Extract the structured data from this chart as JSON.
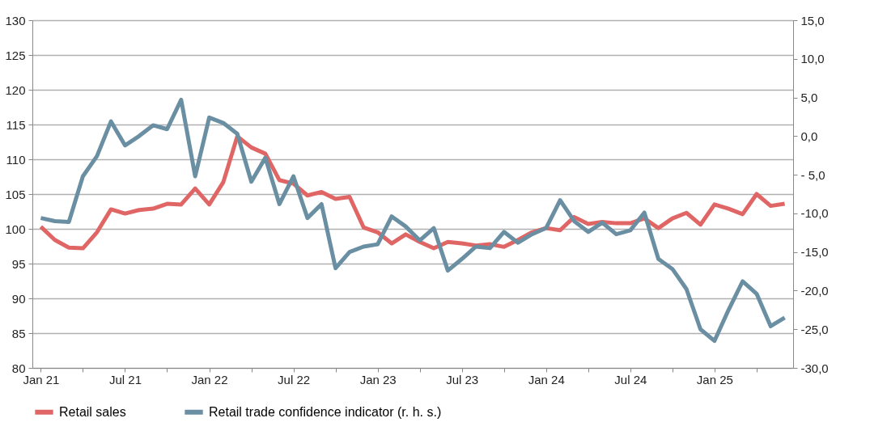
{
  "chart_data": {
    "type": "line",
    "categories": [
      "Jan 21",
      null,
      null,
      null,
      null,
      null,
      "Jul 21",
      null,
      null,
      null,
      null,
      null,
      "Jan 22",
      null,
      null,
      null,
      null,
      null,
      "Jul 22",
      null,
      null,
      null,
      null,
      null,
      "Jan 23",
      null,
      null,
      null,
      null,
      null,
      "Jul 23",
      null,
      null,
      null,
      null,
      null,
      "Jan 24",
      null,
      null,
      null,
      null,
      null,
      "Jul 24",
      null,
      null,
      null,
      null,
      null,
      "Jan 25",
      null,
      null,
      null,
      null,
      null
    ],
    "series": [
      {
        "name": "Retail sales",
        "color": "#e06666",
        "values": [
          100.3,
          98.4,
          97.3,
          97.2,
          99.5,
          102.8,
          102.2,
          102.7,
          102.9,
          103.6,
          103.5,
          105.8,
          103.5,
          106.7,
          113.3,
          111.7,
          110.8,
          107.0,
          106.5,
          104.8,
          105.3,
          104.3,
          104.6,
          100.2,
          99.5,
          97.9,
          99.2,
          98.1,
          97.2,
          98.1,
          97.9,
          97.6,
          97.8,
          97.4,
          98.4,
          99.5,
          100.1,
          99.8,
          101.7,
          100.7,
          101.0,
          100.8,
          100.8,
          101.5,
          100.1,
          101.5,
          102.3,
          100.6,
          103.5,
          102.9,
          102.1,
          105.0,
          103.3,
          103.6
        ]
      },
      {
        "name": "Retail trade confidence indicator (r. h. s.)",
        "color": "#6a8fa3",
        "axis": "y2",
        "values": [
          -10.6,
          -11.0,
          -11.1,
          -5.2,
          -2.6,
          1.9,
          -1.2,
          0.0,
          1.4,
          0.9,
          4.7,
          -5.2,
          2.4,
          1.7,
          0.3,
          -5.9,
          -2.8,
          -8.8,
          -5.2,
          -10.6,
          -8.8,
          -17.1,
          -15.0,
          -14.3,
          -14.0,
          -10.4,
          -11.7,
          -13.5,
          -11.9,
          -17.4,
          -15.9,
          -14.3,
          -14.5,
          -12.4,
          -13.8,
          -12.7,
          -11.9,
          -8.3,
          -11.0,
          -12.4,
          -11.2,
          -12.7,
          -12.2,
          -9.9,
          -15.9,
          -17.2,
          -19.8,
          -25.0,
          -26.5,
          -22.5,
          -18.8,
          -20.4,
          -24.6,
          -23.5
        ]
      }
    ],
    "ylim": [
      80,
      130
    ],
    "yticks": [
      80,
      85,
      90,
      95,
      100,
      105,
      110,
      115,
      120,
      125,
      130
    ],
    "y2lim": [
      -30,
      15
    ],
    "y2ticks": [
      {
        "value": -30,
        "label": "-30,0"
      },
      {
        "value": -25,
        "label": "-25,0"
      },
      {
        "value": -20,
        "label": "-20,0"
      },
      {
        "value": -15,
        "label": "-15,0"
      },
      {
        "value": -10,
        "label": "-10,0"
      },
      {
        "value": -5,
        "label": "- 5,0"
      },
      {
        "value": 0,
        "label": "0,0"
      },
      {
        "value": 5,
        "label": "5,0"
      },
      {
        "value": 10,
        "label": "10,0"
      },
      {
        "value": 15,
        "label": "15,0"
      }
    ],
    "grid": "y",
    "legend": "bottom",
    "marker": "none",
    "line_style": "solid"
  }
}
